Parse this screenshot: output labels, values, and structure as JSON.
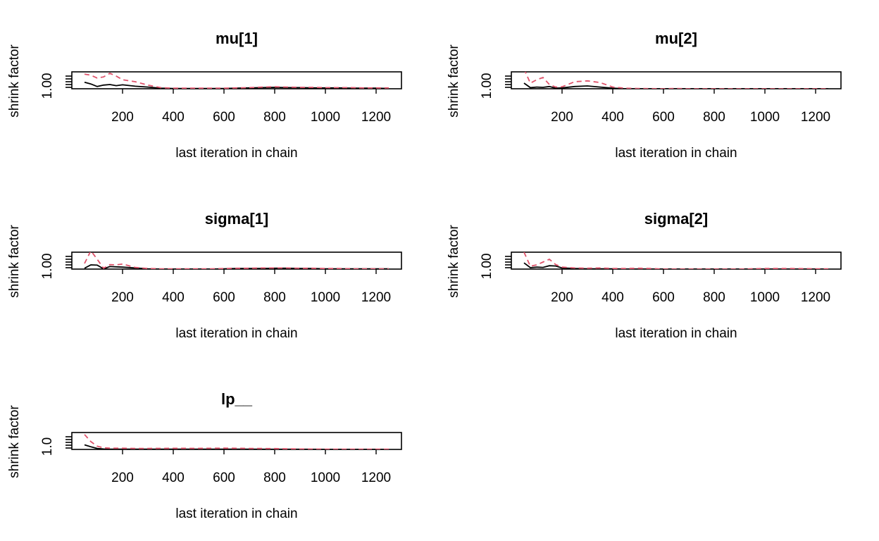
{
  "colors": {
    "median": "#000000",
    "upper_ci": "#DF536B",
    "box": "#000000"
  },
  "chart_data": [
    {
      "type": "line",
      "title": "mu[1]",
      "xlabel": "last iteration in chain",
      "ylabel": "shrink factor",
      "xlim": [
        0,
        1300
      ],
      "ylim": [
        0.99,
        1.05
      ],
      "xticks": [
        200,
        400,
        600,
        800,
        1000,
        1200
      ],
      "yticks": [
        1.0
      ],
      "ytick_label": "1.00",
      "series": [
        {
          "x": [
            50,
            75,
            100,
            125,
            150,
            175,
            200,
            250,
            300,
            350,
            400,
            450,
            500,
            550,
            600,
            650,
            700,
            750,
            800,
            850,
            900,
            950,
            1000,
            1050,
            1100,
            1150,
            1200,
            1250
          ],
          "y": [
            1.013,
            1.007,
            0.998,
            1.003,
            1.005,
            1.001,
            1.004,
            0.999,
            0.996,
            0.992,
            0.991,
            0.991,
            0.991,
            0.991,
            0.991,
            0.992,
            0.993,
            0.994,
            0.995,
            0.994,
            0.994,
            0.993,
            0.993,
            0.993,
            0.992,
            0.992,
            0.992,
            0.991
          ]
        },
        {
          "x": [
            50,
            75,
            100,
            125,
            150,
            175,
            200,
            250,
            300,
            350,
            400,
            450,
            500,
            550,
            600,
            650,
            700,
            750,
            800,
            850,
            900,
            950,
            1000,
            1050,
            1100,
            1150,
            1200,
            1250
          ],
          "y": [
            1.042,
            1.038,
            1.028,
            1.032,
            1.045,
            1.035,
            1.022,
            1.015,
            1.003,
            0.994,
            0.992,
            0.992,
            0.992,
            0.992,
            0.992,
            0.993,
            0.994,
            0.996,
            0.997,
            0.996,
            0.995,
            0.995,
            0.994,
            0.994,
            0.994,
            0.993,
            0.993,
            0.993
          ]
        }
      ]
    },
    {
      "type": "line",
      "title": "mu[2]",
      "xlabel": "last iteration in chain",
      "ylabel": "shrink factor",
      "xlim": [
        0,
        1300
      ],
      "ylim": [
        0.99,
        1.05
      ],
      "xticks": [
        200,
        400,
        600,
        800,
        1000,
        1200
      ],
      "yticks": [
        1.0
      ],
      "ytick_label": "1.00",
      "series": [
        {
          "x": [
            50,
            75,
            100,
            125,
            150,
            175,
            200,
            250,
            300,
            350,
            400,
            450,
            500,
            600,
            700,
            800,
            900,
            1000,
            1100,
            1200,
            1250
          ],
          "y": [
            1.01,
            0.994,
            0.996,
            0.995,
            0.998,
            0.992,
            0.993,
            0.998,
            1.0,
            0.996,
            0.992,
            0.99,
            0.99,
            0.99,
            0.99,
            0.99,
            0.99,
            0.99,
            0.99,
            0.99,
            0.99
          ]
        },
        {
          "x": [
            50,
            75,
            100,
            125,
            150,
            175,
            200,
            250,
            300,
            350,
            400,
            450,
            500,
            600,
            650,
            700,
            800,
            900,
            1000,
            1100,
            1200,
            1250
          ],
          "y": [
            1.06,
            1.01,
            1.022,
            1.03,
            1.005,
            0.996,
            0.997,
            1.015,
            1.018,
            1.012,
            0.996,
            0.992,
            0.991,
            0.99,
            0.991,
            0.99,
            0.99,
            0.99,
            0.99,
            0.99,
            0.99,
            0.99
          ]
        }
      ]
    },
    {
      "type": "line",
      "title": "sigma[1]",
      "xlabel": "last iteration in chain",
      "ylabel": "shrink factor",
      "xlim": [
        0,
        1300
      ],
      "ylim": [
        0.99,
        1.05
      ],
      "xticks": [
        200,
        400,
        600,
        800,
        1000,
        1200
      ],
      "yticks": [
        1.0
      ],
      "ytick_label": "1.00",
      "series": [
        {
          "x": [
            50,
            75,
            100,
            125,
            150,
            175,
            200,
            250,
            300,
            350,
            400,
            450,
            500,
            550,
            600,
            650,
            700,
            750,
            800,
            850,
            900,
            950,
            1000,
            1050,
            1100,
            1150,
            1200,
            1250
          ],
          "y": [
            0.993,
            1.005,
            1.004,
            0.991,
            0.999,
            0.998,
            0.997,
            0.994,
            0.991,
            0.99,
            0.99,
            0.99,
            0.99,
            0.99,
            0.991,
            0.992,
            0.992,
            0.992,
            0.993,
            0.993,
            0.992,
            0.992,
            0.991,
            0.991,
            0.991,
            0.991,
            0.991,
            0.991
          ]
        },
        {
          "x": [
            50,
            75,
            100,
            125,
            150,
            175,
            200,
            250,
            300,
            350,
            400,
            450,
            500,
            550,
            600,
            650,
            700,
            750,
            800,
            850,
            900,
            950,
            1000,
            1050,
            1100,
            1150,
            1200,
            1250
          ],
          "y": [
            1.01,
            1.055,
            1.025,
            0.993,
            1.006,
            1.005,
            1.008,
            0.996,
            0.992,
            0.991,
            0.991,
            0.991,
            0.991,
            0.991,
            0.992,
            0.993,
            0.993,
            0.994,
            0.994,
            0.994,
            0.993,
            0.993,
            0.992,
            0.992,
            0.991,
            0.991,
            0.991,
            0.991
          ]
        }
      ]
    },
    {
      "type": "line",
      "title": "sigma[2]",
      "xlabel": "last iteration in chain",
      "ylabel": "shrink factor",
      "xlim": [
        0,
        1300
      ],
      "ylim": [
        0.99,
        1.05
      ],
      "xticks": [
        200,
        400,
        600,
        800,
        1000,
        1200
      ],
      "yticks": [
        1.0
      ],
      "ytick_label": "1.00",
      "series": [
        {
          "x": [
            50,
            75,
            100,
            125,
            150,
            175,
            200,
            250,
            300,
            350,
            400,
            450,
            500,
            600,
            700,
            800,
            900,
            1000,
            1100,
            1200,
            1250
          ],
          "y": [
            1.012,
            0.995,
            0.997,
            0.996,
            1.002,
            1.001,
            0.994,
            0.992,
            0.991,
            0.991,
            0.991,
            0.99,
            0.99,
            0.99,
            0.99,
            0.99,
            0.99,
            0.99,
            0.99,
            0.99,
            0.99
          ]
        },
        {
          "x": [
            50,
            75,
            100,
            125,
            150,
            175,
            200,
            250,
            300,
            350,
            400,
            450,
            500,
            550,
            600,
            700,
            800,
            900,
            1000,
            1100,
            1200,
            1250
          ],
          "y": [
            1.05,
            1.0,
            1.005,
            1.015,
            1.025,
            1.006,
            0.997,
            0.994,
            0.993,
            0.994,
            0.992,
            0.992,
            0.993,
            0.992,
            0.99,
            0.99,
            0.99,
            0.99,
            0.992,
            0.992,
            0.991,
            0.991
          ]
        }
      ]
    },
    {
      "type": "line",
      "title": "lp__",
      "xlabel": "last iteration in chain",
      "ylabel": "shrink factor",
      "xlim": [
        0,
        1300
      ],
      "ylim": [
        0.99,
        1.25
      ],
      "xticks": [
        200,
        400,
        600,
        800,
        1000,
        1200
      ],
      "yticks": [
        1.0
      ],
      "ytick_label": "1.0",
      "series": [
        {
          "x": [
            50,
            75,
            100,
            125,
            150,
            200,
            250,
            300,
            400,
            500,
            600,
            700,
            800,
            900,
            1000,
            1100,
            1200,
            1250
          ],
          "y": [
            1.06,
            1.03,
            1.005,
            0.996,
            0.994,
            0.993,
            0.993,
            0.993,
            0.993,
            0.993,
            0.993,
            0.993,
            0.992,
            0.992,
            0.991,
            0.991,
            0.991,
            0.991
          ]
        },
        {
          "x": [
            50,
            75,
            100,
            125,
            150,
            200,
            250,
            300,
            400,
            500,
            600,
            700,
            800,
            900,
            1000,
            1100,
            1200,
            1250
          ],
          "y": [
            1.22,
            1.11,
            1.04,
            1.015,
            1.01,
            1.008,
            1.005,
            1.005,
            1.007,
            1.006,
            1.01,
            1.005,
            1.003,
            0.996,
            0.994,
            0.994,
            0.993,
            0.993
          ]
        }
      ]
    }
  ]
}
